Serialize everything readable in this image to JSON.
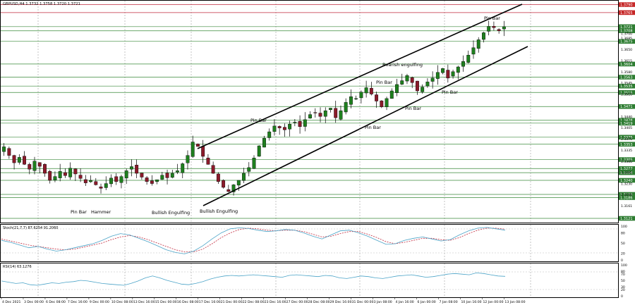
{
  "window": {
    "symbol_label": "GBPUSD,H4  1.3732 1.3758 1.3720 1.3721"
  },
  "colors": {
    "background": "#ffffff",
    "bull": "#1e7f1e",
    "bear": "#8b1a2a",
    "wick": "#000000",
    "level_line": "#3a8a3a",
    "resistance_line": "#c0283c",
    "channel": "#000000",
    "stoch_main": "#4aa3c7",
    "stoch_signal": "#c0283c",
    "rsi": "#4aa3c7",
    "price_tag_green": "#2e7d32",
    "price_tag_red": "#c62828"
  },
  "chart_data": [
    {
      "type": "candlestick",
      "title": "GBPUSD,H4  1.3732 1.3758 1.3720 1.3721",
      "ylim": [
        1.311,
        1.38
      ],
      "price_axis_ticks": [
        "1.3700",
        "1.3685",
        "1.3650",
        "1.3615",
        "1.3580",
        "1.3545",
        "1.3510",
        "1.3440",
        "1.3405",
        "1.3370",
        "1.3335",
        "1.3300",
        "1.3265",
        "1.3230",
        "1.3196",
        "1.3161"
      ],
      "levels_green": [
        "1.3721",
        "1.3708",
        "1.3675",
        "1.3604",
        "1.3563",
        "1.3535",
        "1.3515",
        "1.3471",
        "1.3428",
        "1.3419",
        "1.3375",
        "1.3353",
        "1.3305",
        "1.3277",
        "1.3264",
        "1.3240",
        "1.3196",
        "1.3186",
        "1.3121"
      ],
      "levels_red": [
        "1.3790",
        "1.3765"
      ],
      "x_labels": [
        "4 Dec 2021",
        "3 Dec 00:00",
        "6 Dec 08:00",
        "7 Dec 16:00",
        "9 Dec 00:00",
        "10 Dec 08:00",
        "13 Dec 16:00",
        "15 Dec 00:00",
        "16 Dec 08:00",
        "17 Dec 16:00",
        "21 Dec 00:00",
        "22 Dec 08:00",
        "23 Dec 16:00",
        "27 Dec 00:00",
        "28 Dec 08:00",
        "29 Dec 16:00",
        "31 Dec 00:00",
        "3 Jan 08:00",
        "4 Jan 16:00",
        "6 Jan 00:00",
        "7 Jan 08:00",
        "10 Jan 16:00",
        "12 Jan 00:00",
        "13 Jan 08:00"
      ],
      "annotations": [
        "Pin Bar",
        "Hammer",
        "Bullish Engulfing",
        "Bullish Engulfing",
        "Pin Bar",
        "Pin Bar",
        "Bearish engulfing",
        "Pin Bar",
        "Pin Bar",
        "Pin Bar",
        "Pin Bar"
      ],
      "closes": [
        1.3345,
        1.3318,
        1.3295,
        1.3312,
        1.329,
        1.3275,
        1.33,
        1.3284,
        1.3262,
        1.324,
        1.3252,
        1.3268,
        1.3255,
        1.3278,
        1.326,
        1.3246,
        1.3232,
        1.324,
        1.3226,
        1.3215,
        1.323,
        1.3247,
        1.3236,
        1.3252,
        1.327,
        1.3283,
        1.3262,
        1.325,
        1.3236,
        1.323,
        1.3242,
        1.3256,
        1.3248,
        1.3262,
        1.327,
        1.3292,
        1.3318,
        1.336,
        1.3346,
        1.3315,
        1.329,
        1.3262,
        1.3236,
        1.3218,
        1.3205,
        1.3226,
        1.324,
        1.3262,
        1.328,
        1.331,
        1.3348,
        1.3372,
        1.3392,
        1.341,
        1.3404,
        1.3398,
        1.3416,
        1.3422,
        1.3408,
        1.343,
        1.3446,
        1.3452,
        1.344,
        1.3458,
        1.3466,
        1.3436,
        1.3458,
        1.3484,
        1.3502,
        1.3496,
        1.3516,
        1.353,
        1.351,
        1.3488,
        1.347,
        1.3496,
        1.352,
        1.354,
        1.3552,
        1.3568,
        1.3546,
        1.352,
        1.3532,
        1.3548,
        1.356,
        1.3578,
        1.359,
        1.356,
        1.358,
        1.3595,
        1.3612,
        1.3632,
        1.3655,
        1.368,
        1.3702,
        1.3722,
        1.3718,
        1.3708,
        1.3721
      ],
      "volatility": 0.0034
    },
    {
      "type": "line",
      "title": "Stoch(21,7,7) 87.6254 91.2060",
      "ylim": [
        0,
        100
      ],
      "y_ticks": [
        "100",
        "80",
        "50",
        "20",
        "0"
      ],
      "series": [
        {
          "name": "Stoch main",
          "values": [
            58,
            52,
            44,
            36,
            40,
            32,
            26,
            30,
            36,
            42,
            48,
            58,
            70,
            78,
            74,
            64,
            54,
            42,
            30,
            22,
            18,
            26,
            42,
            62,
            80,
            92,
            95,
            93,
            88,
            84,
            86,
            90,
            88,
            80,
            70,
            62,
            74,
            86,
            88,
            80,
            70,
            58,
            46,
            48,
            58,
            64,
            68,
            62,
            56,
            60,
            74,
            86,
            94,
            96,
            92,
            88
          ]
        },
        {
          "name": "Stoch signal",
          "values": [
            62,
            56,
            50,
            44,
            40,
            36,
            32,
            30,
            32,
            38,
            44,
            50,
            60,
            68,
            72,
            68,
            60,
            50,
            40,
            30,
            24,
            24,
            32,
            48,
            66,
            80,
            90,
            94,
            92,
            88,
            86,
            88,
            88,
            84,
            76,
            68,
            70,
            78,
            84,
            84,
            76,
            66,
            54,
            48,
            52,
            58,
            64,
            64,
            60,
            58,
            66,
            78,
            88,
            94,
            94,
            91
          ]
        }
      ]
    },
    {
      "type": "line",
      "title": "RSI(14) 63.1276",
      "ylim": [
        0,
        100
      ],
      "y_ticks": [
        "100",
        "80",
        "70",
        "50",
        "30",
        "20",
        "0"
      ],
      "series": [
        {
          "name": "RSI",
          "values": [
            48,
            44,
            40,
            42,
            36,
            34,
            38,
            42,
            40,
            44,
            46,
            50,
            48,
            44,
            40,
            38,
            36,
            34,
            40,
            48,
            58,
            64,
            58,
            50,
            44,
            38,
            36,
            40,
            46,
            54,
            60,
            64,
            66,
            64,
            66,
            68,
            66,
            64,
            62,
            60,
            66,
            68,
            66,
            64,
            62,
            66,
            64,
            58,
            56,
            60,
            64,
            62,
            58,
            56,
            60,
            64,
            66,
            68,
            64,
            60,
            62,
            66,
            70,
            72,
            70,
            68,
            74,
            72,
            68,
            64,
            63
          ]
        }
      ]
    }
  ]
}
